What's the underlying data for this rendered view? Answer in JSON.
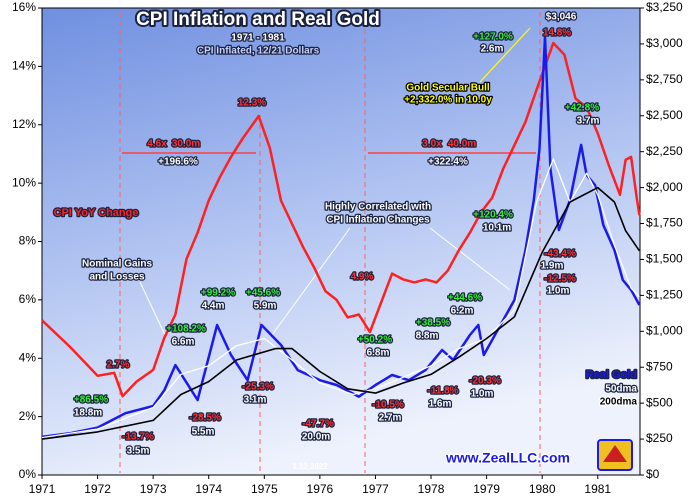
{
  "chart_data": {
    "type": "line",
    "title": "CPI Inflation and Real Gold",
    "subtitle": "1971 - 1981",
    "subtitle2": "CPI Inflated, 12/21 Dollars",
    "xlim": [
      1971,
      1981.76
    ],
    "xticks": [
      1971,
      1972,
      1973,
      1974,
      1975,
      1976,
      1977,
      1978,
      1979,
      1980,
      1981
    ],
    "ylim": [
      0,
      16
    ],
    "yticks": [
      {
        "value": 0,
        "label": "0%"
      },
      {
        "value": 2,
        "label": "2%"
      },
      {
        "value": 4,
        "label": "4%"
      },
      {
        "value": 6,
        "label": "6%"
      },
      {
        "value": 8,
        "label": "8%"
      },
      {
        "value": 10,
        "label": "10%"
      },
      {
        "value": 12,
        "label": "12%"
      },
      {
        "value": 14,
        "label": "14%"
      },
      {
        "value": 16,
        "label": "16%"
      }
    ],
    "y2lim": [
      0,
      3250
    ],
    "y2ticks": [
      {
        "value": 0,
        "label": "$0"
      },
      {
        "value": 250,
        "label": "$250"
      },
      {
        "value": 500,
        "label": "$500"
      },
      {
        "value": 750,
        "label": "$750"
      },
      {
        "value": 1000,
        "label": "$1,000"
      },
      {
        "value": 1250,
        "label": "$1,250"
      },
      {
        "value": 1500,
        "label": "$1,500"
      },
      {
        "value": 1750,
        "label": "$1,750"
      },
      {
        "value": 2000,
        "label": "$2,000"
      },
      {
        "value": 2250,
        "label": "$2,250"
      },
      {
        "value": 2500,
        "label": "$2,500"
      },
      {
        "value": 2750,
        "label": "$2,750"
      },
      {
        "value": 3000,
        "label": "$3,000"
      },
      {
        "value": 3250,
        "label": "$3,250"
      }
    ],
    "series": [
      {
        "name": "CPI YoY Change",
        "color": "#ff2020",
        "axis": "y",
        "x": [
          1971.0,
          1971.5,
          1971.8,
          1972.0,
          1972.3,
          1972.45,
          1972.7,
          1973.0,
          1973.2,
          1973.4,
          1973.6,
          1973.8,
          1974.0,
          1974.2,
          1974.4,
          1974.6,
          1974.9,
          1975.1,
          1975.3,
          1975.5,
          1975.7,
          1975.9,
          1976.1,
          1976.3,
          1976.5,
          1976.7,
          1976.9,
          1977.1,
          1977.3,
          1977.5,
          1977.7,
          1977.9,
          1978.1,
          1978.3,
          1978.5,
          1978.7,
          1978.9,
          1979.1,
          1979.3,
          1979.5,
          1979.7,
          1979.9,
          1980.2,
          1980.4,
          1980.6,
          1980.8,
          1981.0,
          1981.2,
          1981.4,
          1981.5,
          1981.6,
          1981.7,
          1981.75
        ],
        "values": [
          5.3,
          4.4,
          3.8,
          3.4,
          3.5,
          2.7,
          3.2,
          3.6,
          4.7,
          5.5,
          7.4,
          8.3,
          9.4,
          10.2,
          10.9,
          11.5,
          12.3,
          11.2,
          9.4,
          8.6,
          7.8,
          7.1,
          6.3,
          6.0,
          5.4,
          5.5,
          4.9,
          5.9,
          6.9,
          6.7,
          6.6,
          6.7,
          6.6,
          7.0,
          7.7,
          8.3,
          9.0,
          9.5,
          10.5,
          11.3,
          12.1,
          13.2,
          14.8,
          14.4,
          12.9,
          12.6,
          11.7,
          10.6,
          9.6,
          10.8,
          10.9,
          9.5,
          8.9
        ]
      },
      {
        "name": "Real Gold",
        "color": "#1a1aee",
        "axis": "y2",
        "x": [
          1971.0,
          1971.5,
          1972.0,
          1972.3,
          1972.5,
          1972.7,
          1973.0,
          1973.2,
          1973.4,
          1973.8,
          1974.15,
          1974.4,
          1974.7,
          1974.95,
          1975.3,
          1975.6,
          1976.0,
          1976.3,
          1976.7,
          1977.0,
          1977.3,
          1977.6,
          1977.9,
          1978.2,
          1978.4,
          1978.7,
          1978.85,
          1978.95,
          1979.2,
          1979.5,
          1979.7,
          1979.85,
          1979.95,
          1980.05,
          1980.15,
          1980.3,
          1980.5,
          1980.7,
          1980.8,
          1980.95,
          1981.1,
          1981.3,
          1981.45,
          1981.6,
          1981.75
        ],
        "values": [
          265,
          290,
          330,
          390,
          430,
          450,
          480,
          590,
          765,
          522,
          1044,
          835,
          660,
          1044,
          905,
          730,
          660,
          626,
          545,
          626,
          696,
          660,
          730,
          870,
          800,
          974,
          1044,
          835,
          1009,
          1218,
          1566,
          1914,
          2262,
          3046,
          2123,
          1705,
          1914,
          2297,
          2088,
          2018,
          1740,
          1566,
          1357,
          1288,
          1183
        ]
      },
      {
        "name": "50dma",
        "color": "#ffffff",
        "axis": "y2",
        "x": [
          1971.0,
          1972.0,
          1973.0,
          1973.5,
          1974.0,
          1974.5,
          1975.0,
          1975.5,
          1976.0,
          1976.6,
          1977.0,
          1977.5,
          1978.0,
          1978.5,
          1979.0,
          1979.5,
          1979.9,
          1980.2,
          1980.5,
          1980.8,
          1981.0,
          1981.3,
          1981.6,
          1981.75
        ],
        "values": [
          260,
          320,
          470,
          700,
          760,
          900,
          950,
          800,
          640,
          560,
          600,
          680,
          760,
          880,
          950,
          1150,
          1900,
          2200,
          1900,
          2100,
          1950,
          1600,
          1300,
          1240
        ]
      },
      {
        "name": "200dma",
        "color": "#000000",
        "axis": "y2",
        "x": [
          1971.0,
          1972.0,
          1973.0,
          1973.5,
          1974.0,
          1974.5,
          1975.2,
          1975.5,
          1976.0,
          1976.5,
          1977.0,
          1977.5,
          1978.0,
          1978.5,
          1979.0,
          1979.5,
          1980.0,
          1980.5,
          1981.0,
          1981.3,
          1981.5,
          1981.75
        ],
        "values": [
          250,
          300,
          380,
          560,
          650,
          800,
          880,
          880,
          720,
          600,
          570,
          640,
          700,
          820,
          950,
          1100,
          1550,
          1900,
          2000,
          1900,
          1700,
          1560
        ]
      }
    ],
    "annotations": [
      {
        "text": "$3,046",
        "color": "#ffffff"
      },
      {
        "text": "+127.0%",
        "color": "#33ee33"
      },
      {
        "text": "2.6m",
        "color": "#ffffff"
      },
      {
        "text": "14.8%",
        "color": "#ff3030"
      },
      {
        "text": "Gold Secular Bull",
        "color": "#ffff00"
      },
      {
        "text": "+2,332.0% in 10.0y",
        "color": "#ffff00"
      },
      {
        "text": "12.3%",
        "color": "#ff3030"
      },
      {
        "text": "4.6x",
        "color": "#ff3030"
      },
      {
        "text": "30.0m",
        "color": "#ff3030"
      },
      {
        "text": "+196.6%",
        "color": "#ffffff"
      },
      {
        "text": "3.0x",
        "color": "#ff3030"
      },
      {
        "text": "40.0m",
        "color": "#ff3030"
      },
      {
        "text": "+322.4%",
        "color": "#ffffff"
      },
      {
        "text": "Highly Correlated with",
        "color": "#ffffff"
      },
      {
        "text": "CPI Inflation Changes",
        "color": "#ffffff"
      },
      {
        "text": "+42.8%",
        "color": "#33ee33"
      },
      {
        "text": "3.7m",
        "color": "#ffffff"
      },
      {
        "text": "+120.4%",
        "color": "#33ee33"
      },
      {
        "text": "10.1m",
        "color": "#ffffff"
      },
      {
        "text": "-43.4%",
        "color": "#ff3030"
      },
      {
        "text": "1.9m",
        "color": "#ffffff"
      },
      {
        "text": "-12.5%",
        "color": "#ff3030"
      },
      {
        "text": "1.0m",
        "color": "#ffffff"
      },
      {
        "text": "Nominal Gains",
        "color": "#ffffff"
      },
      {
        "text": "and Losses",
        "color": "#ffffff"
      },
      {
        "text": "+99.2%",
        "color": "#33ee33"
      },
      {
        "text": "4.4m",
        "color": "#ffffff"
      },
      {
        "text": "+45.6%",
        "color": "#33ee33"
      },
      {
        "text": "5.9m",
        "color": "#ffffff"
      },
      {
        "text": "4.9%",
        "color": "#ff3030"
      },
      {
        "text": "+44.6%",
        "color": "#33ee33"
      },
      {
        "text": "6.2m",
        "color": "#ffffff"
      },
      {
        "text": "+38.5%",
        "color": "#33ee33"
      },
      {
        "text": "8.8m",
        "color": "#ffffff"
      },
      {
        "text": "+108.2%",
        "color": "#33ee33"
      },
      {
        "text": "6.6m",
        "color": "#ffffff"
      },
      {
        "text": "2.7%",
        "color": "#ff3030"
      },
      {
        "text": "+50.2%",
        "color": "#33ee33"
      },
      {
        "text": "6.8m",
        "color": "#ffffff"
      },
      {
        "text": "+86.5%",
        "color": "#33ee33"
      },
      {
        "text": "18.8m",
        "color": "#ffffff"
      },
      {
        "text": "-28.5%",
        "color": "#ff3030"
      },
      {
        "text": "5.5m",
        "color": "#ffffff"
      },
      {
        "text": "-25.3%",
        "color": "#ff3030"
      },
      {
        "text": "3.1m",
        "color": "#ffffff"
      },
      {
        "text": "-11.8%",
        "color": "#ff3030"
      },
      {
        "text": "1.6m",
        "color": "#ffffff"
      },
      {
        "text": "-20.3%",
        "color": "#ff3030"
      },
      {
        "text": "1.0m",
        "color": "#ffffff"
      },
      {
        "text": "-13.7%",
        "color": "#ff3030"
      },
      {
        "text": "3.5m",
        "color": "#ffffff"
      },
      {
        "text": "-10.5%",
        "color": "#ff3030"
      },
      {
        "text": "2.7m",
        "color": "#ffffff"
      },
      {
        "text": "-47.7%",
        "color": "#ff3030"
      },
      {
        "text": "20.0m",
        "color": "#ffffff"
      },
      {
        "text": "1.12.2022",
        "color": "#ffffff"
      },
      {
        "text": "www.ZealLLC.com",
        "color": "#1a1aee"
      }
    ]
  }
}
